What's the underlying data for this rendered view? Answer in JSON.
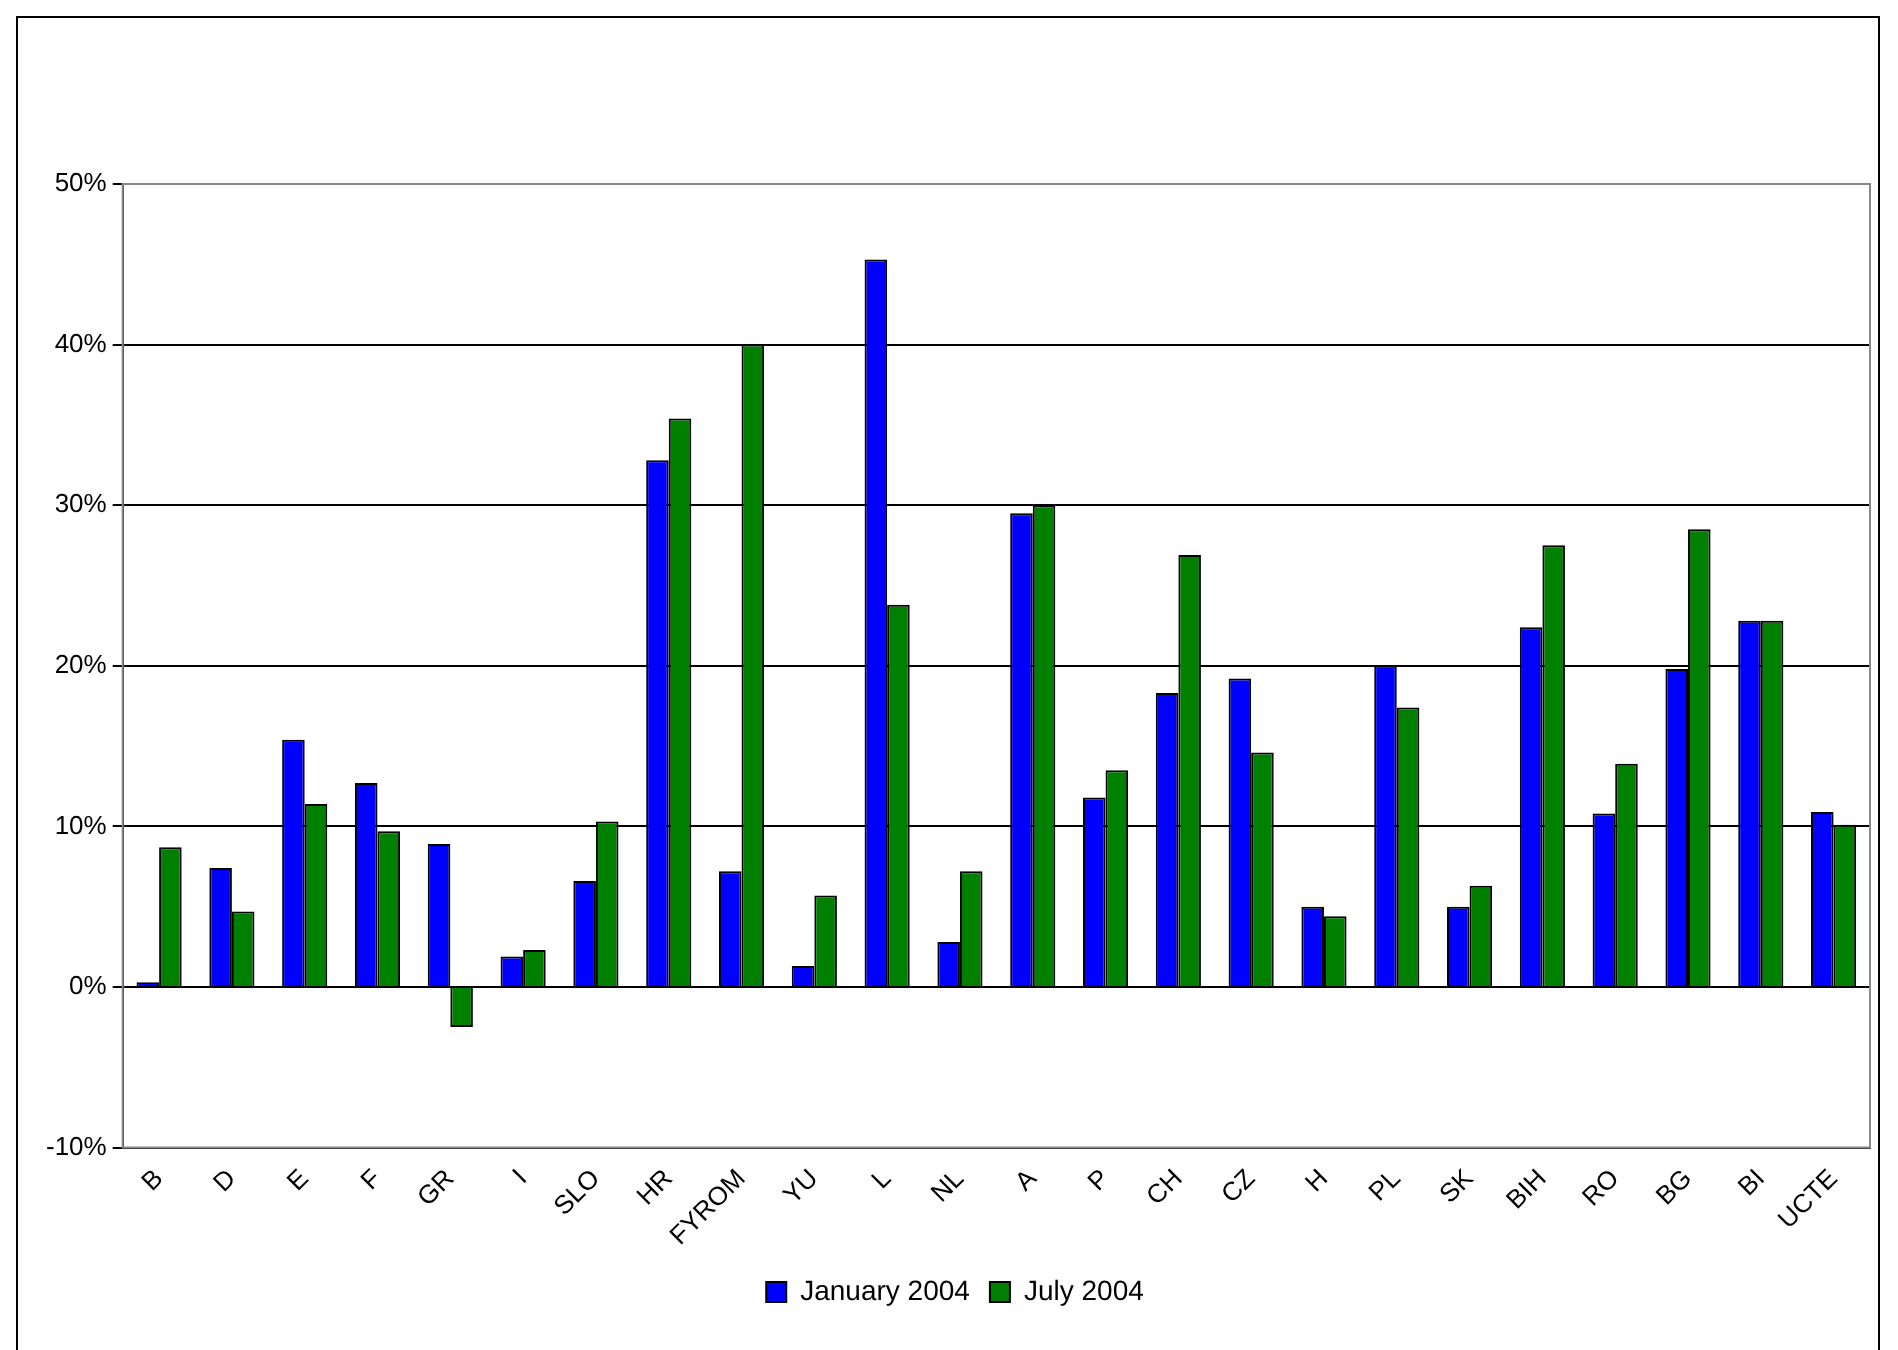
{
  "chart_data": {
    "type": "bar",
    "categories": [
      "B",
      "D",
      "E",
      "F",
      "GR",
      "I",
      "SLO",
      "HR",
      "FYROM",
      "YU",
      "L",
      "NL",
      "A",
      "P",
      "CH",
      "CZ",
      "H",
      "PL",
      "SK",
      "BIH",
      "RO",
      "BG",
      "BI",
      "UCTE"
    ],
    "series": [
      {
        "name": "January 2004",
        "color": "#0000ff",
        "values": [
          0.3,
          7.4,
          15.4,
          12.7,
          8.9,
          1.9,
          6.6,
          32.8,
          7.2,
          1.3,
          45.3,
          2.8,
          29.5,
          11.8,
          18.3,
          19.2,
          5.0,
          20.0,
          5.0,
          22.4,
          10.8,
          19.8,
          22.8,
          10.9
        ]
      },
      {
        "name": "July 2004",
        "color": "#008000",
        "values": [
          8.7,
          4.7,
          11.4,
          9.7,
          -2.5,
          2.3,
          10.3,
          35.4,
          40.0,
          5.7,
          23.8,
          7.2,
          30.0,
          13.5,
          26.9,
          14.6,
          4.4,
          17.4,
          6.3,
          27.5,
          13.9,
          28.5,
          22.8,
          10.1
        ]
      }
    ],
    "ylim": [
      -10,
      50
    ],
    "yticks": [
      {
        "value": -10,
        "label": "-10%"
      },
      {
        "value": 0,
        "label": "0%"
      },
      {
        "value": 10,
        "label": "10%"
      },
      {
        "value": 20,
        "label": "20%"
      },
      {
        "value": 30,
        "label": "30%"
      },
      {
        "value": 40,
        "label": "40%"
      },
      {
        "value": 50,
        "label": "50%"
      }
    ],
    "grid": "y",
    "legend": "bottom"
  }
}
